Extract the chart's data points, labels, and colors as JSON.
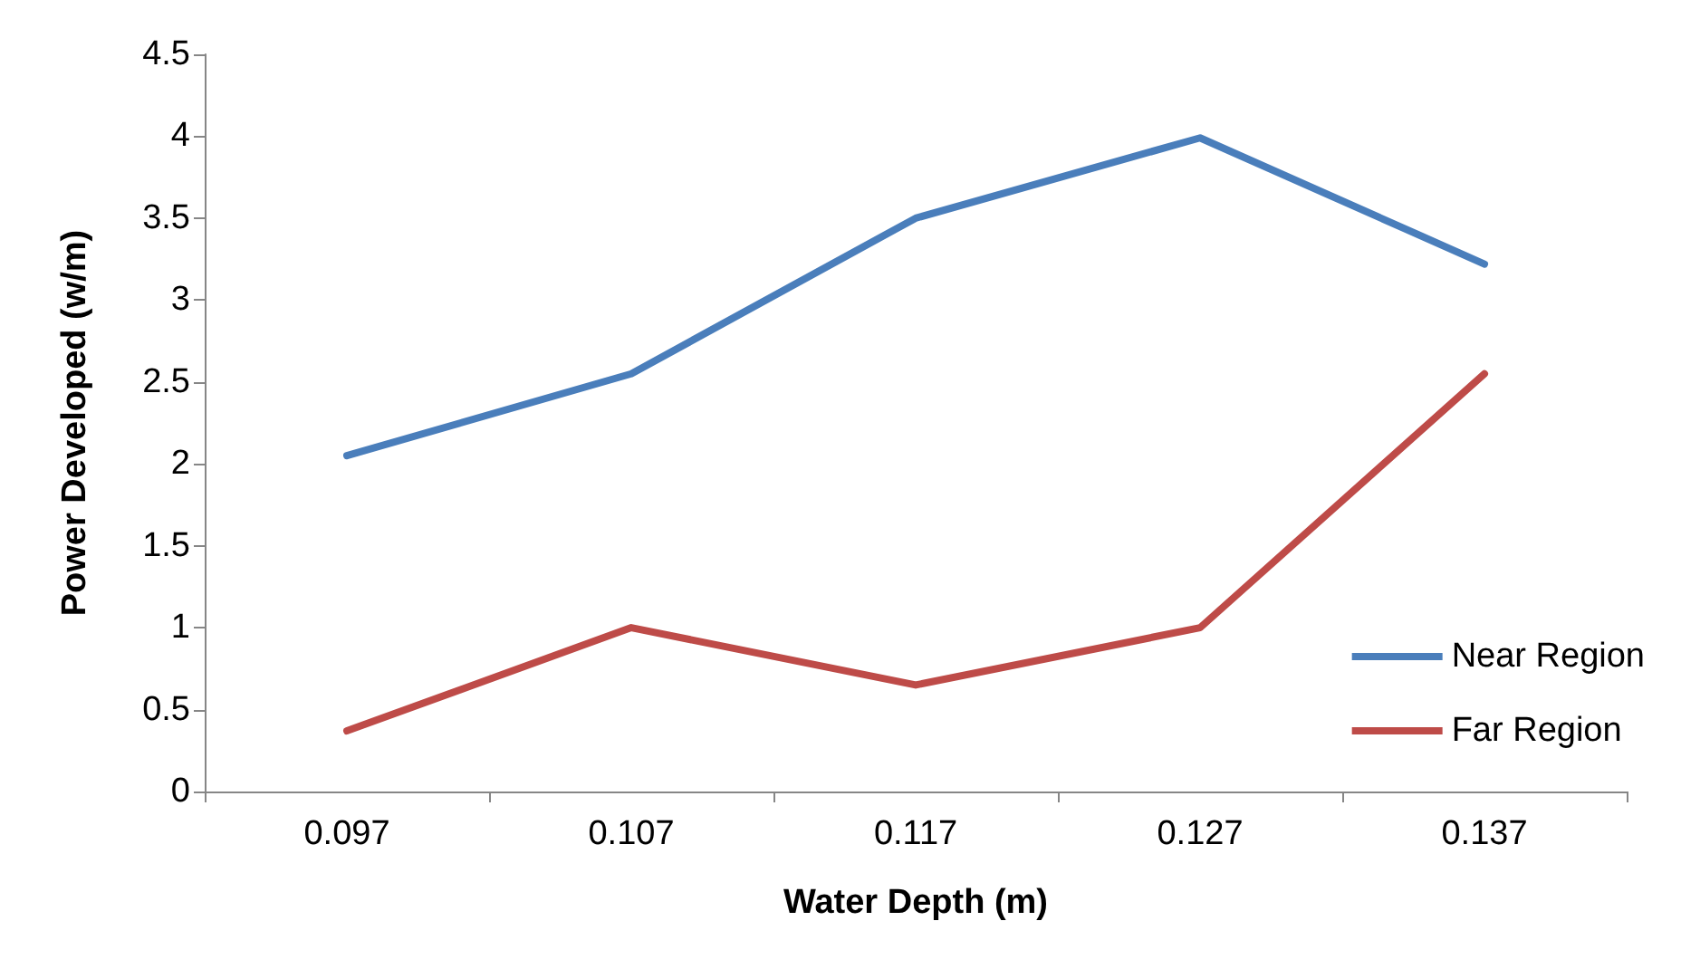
{
  "chart_data": {
    "type": "line",
    "xlabel": "Water Depth (m)",
    "ylabel": "Power Developed (w/m)",
    "categories": [
      "0.097",
      "0.107",
      "0.117",
      "0.127",
      "0.137"
    ],
    "series": [
      {
        "name": "Near Region",
        "color": "#4a7ebb",
        "values": [
          2.05,
          2.55,
          3.5,
          3.99,
          3.22
        ]
      },
      {
        "name": "Far Region",
        "color": "#be4b48",
        "values": [
          0.37,
          1.0,
          0.65,
          1.0,
          2.55
        ]
      }
    ],
    "ylim": [
      0,
      4.5
    ],
    "yticks": [
      0,
      0.5,
      1,
      1.5,
      2,
      2.5,
      3,
      3.5,
      4,
      4.5
    ],
    "grid": false,
    "legend": "right",
    "marker": "none",
    "line_style": "solid"
  }
}
